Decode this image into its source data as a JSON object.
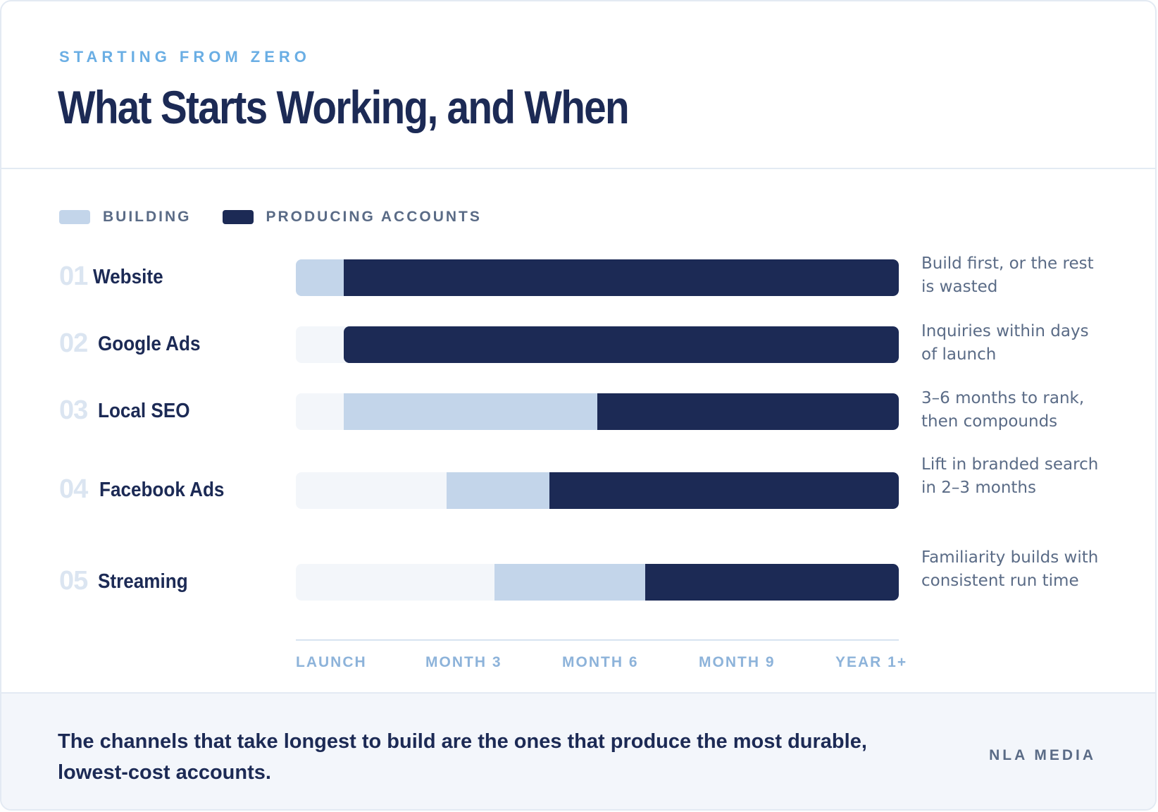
{
  "header": {
    "eyebrow": "STARTING FROM ZERO",
    "title": "What Starts Working, and When"
  },
  "legend": {
    "building": "BUILDING",
    "producing": "PRODUCING ACCOUNTS"
  },
  "colors": {
    "building": "#c3d5ea",
    "producing": "#1c2a55",
    "track": "#f3f6fa",
    "accent": "#6aaee4"
  },
  "chart_data": {
    "type": "bar",
    "orientation": "horizontal",
    "stacked": true,
    "x_ticks": [
      "LAUNCH",
      "MONTH 3",
      "MONTH 6",
      "MONTH 9",
      "YEAR 1+"
    ],
    "x_range": [
      0,
      12
    ],
    "rows": [
      {
        "num": "01",
        "name": "Website",
        "build_start": 0,
        "produce_start": 0.95,
        "end": 12,
        "note": "Build first, or the rest is wasted"
      },
      {
        "num": "02",
        "name": "Google Ads",
        "build_start": 0.95,
        "produce_start": 0.95,
        "end": 12,
        "note": "Inquiries within days of launch"
      },
      {
        "num": "03",
        "name": "Local SEO",
        "build_start": 0.95,
        "produce_start": 6,
        "end": 12,
        "note": "3–6 months to rank, then compounds"
      },
      {
        "num": "04",
        "name": "Facebook Ads",
        "build_start": 3,
        "produce_start": 5.05,
        "end": 12,
        "note": "Lift in branded search in 2–3 months"
      },
      {
        "num": "05",
        "name": "Streaming",
        "build_start": 3.95,
        "produce_start": 6.95,
        "end": 12,
        "note": "Familiarity builds with consistent run time"
      }
    ]
  },
  "footer": {
    "takeaway": "The channels that take longest to build are the ones that produce the most durable, lowest-cost accounts.",
    "brand": "NLA MEDIA"
  }
}
